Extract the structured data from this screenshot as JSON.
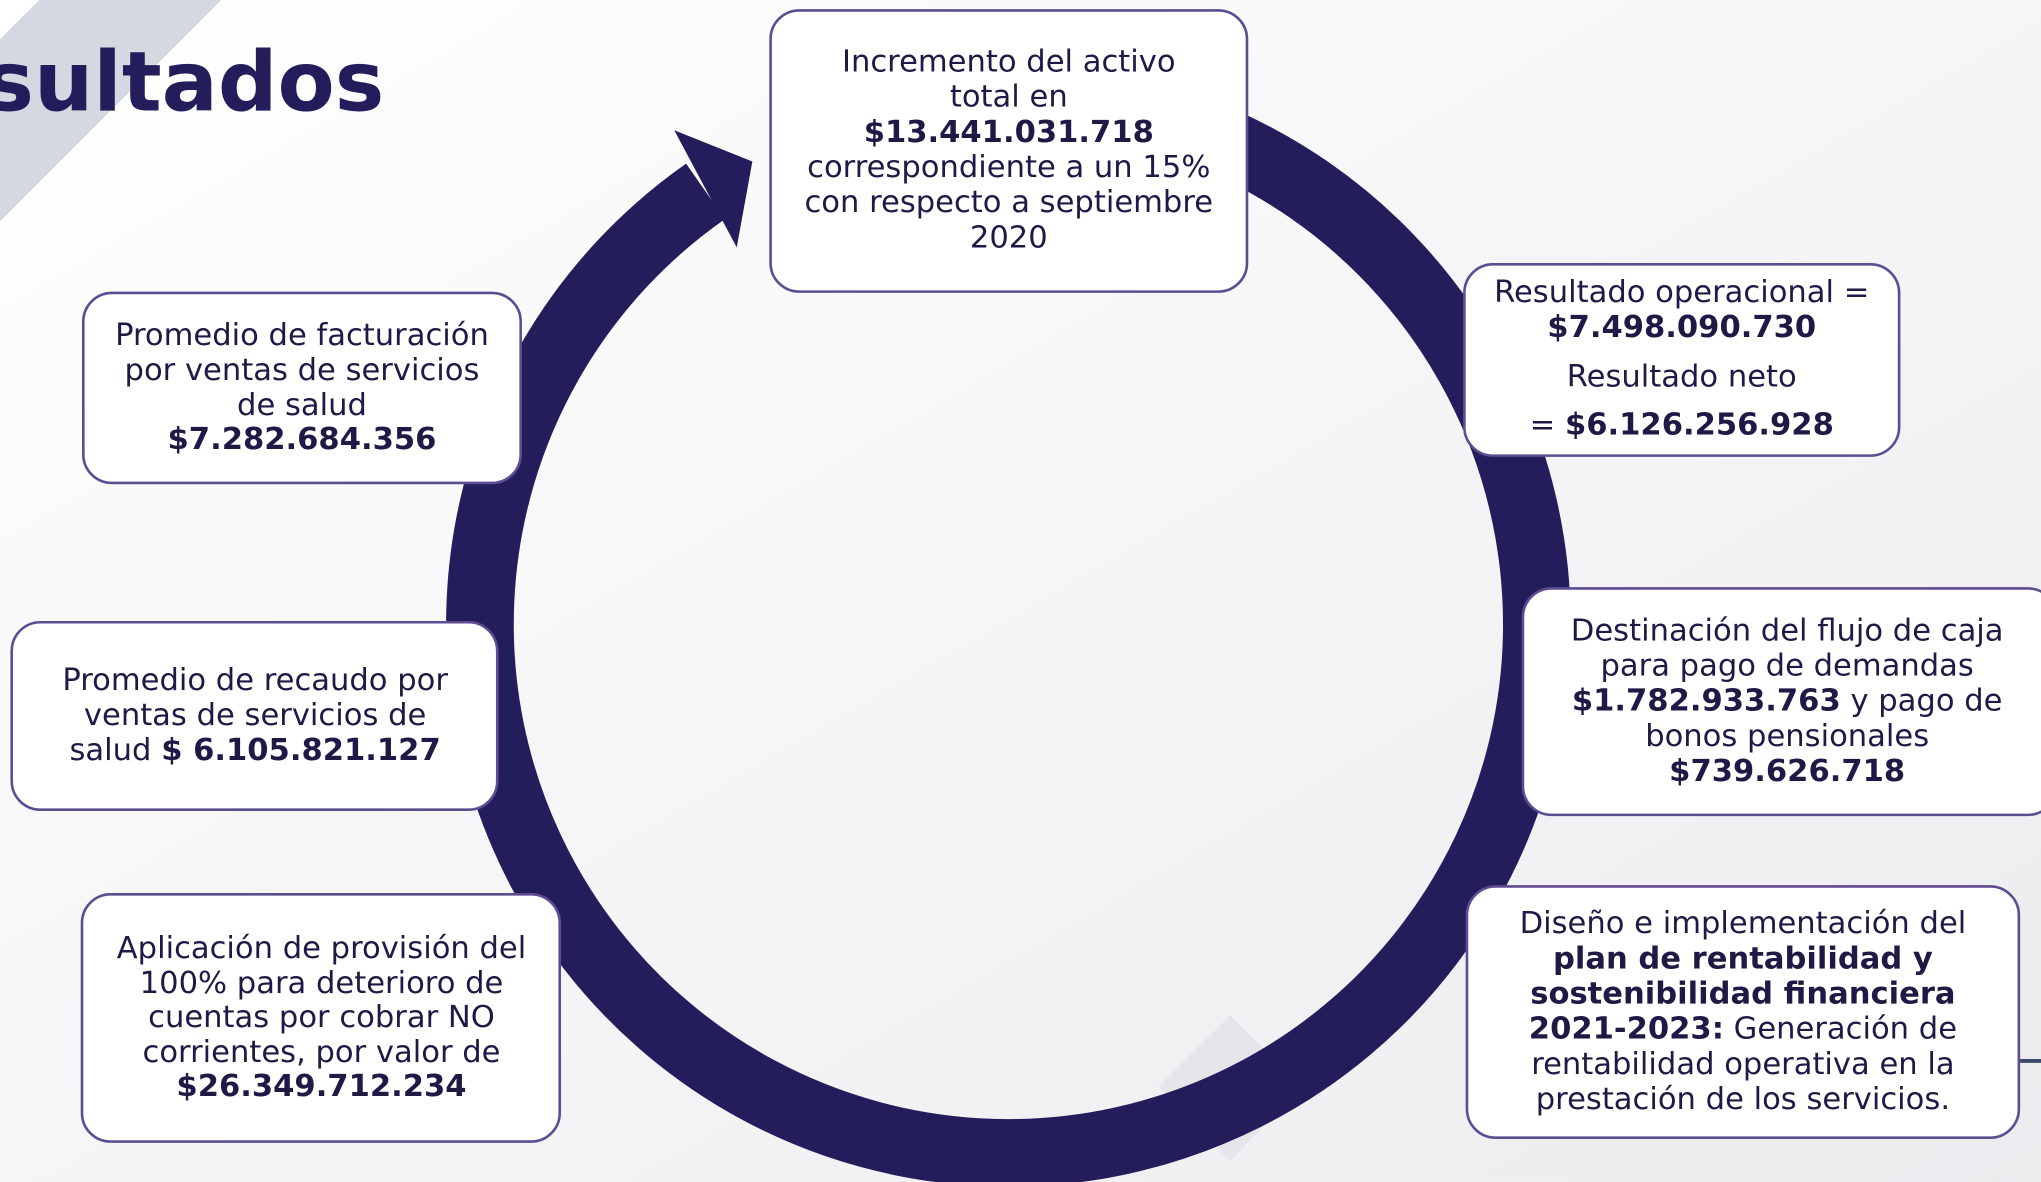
{
  "title": "sultados",
  "boxes": [
    {
      "lines": [
        [
          {
            "text": "Incremento del activo"
          }
        ],
        [
          {
            "text": "total en"
          }
        ],
        [
          {
            "text": "$13.441.031.718",
            "bold": true
          }
        ],
        [
          {
            "text": "correspondiente a un 15%"
          }
        ],
        [
          {
            "text": "con respecto a septiembre"
          }
        ],
        [
          {
            "text": "2020"
          }
        ]
      ]
    },
    {
      "lines": [
        [
          {
            "text": "Resultado operacional ="
          }
        ],
        [
          {
            "text": "$7.498.090.730",
            "bold": true
          }
        ],
        [
          {
            "text": "Resultado neto"
          }
        ],
        [
          {
            "text": "= "
          },
          {
            "text": "$6.126.256.928",
            "bold": true
          }
        ]
      ]
    },
    {
      "lines": [
        [
          {
            "text": "Destinación del flujo de caja"
          }
        ],
        [
          {
            "text": "para pago de demandas"
          }
        ],
        [
          {
            "text": "$1.782.933.763",
            "bold": true
          },
          {
            "text": " y pago de"
          }
        ],
        [
          {
            "text": "bonos pensionales"
          }
        ],
        [
          {
            "text": "$739.626.718",
            "bold": true
          }
        ]
      ]
    },
    {
      "lines": [
        [
          {
            "text": "Diseño e implementación del"
          }
        ],
        [
          {
            "text": "plan de rentabilidad y",
            "bold": true
          }
        ],
        [
          {
            "text": "sostenibilidad financiera",
            "bold": true
          }
        ],
        [
          {
            "text": "2021-2023:",
            "bold": true
          },
          {
            "text": " Generación de"
          }
        ],
        [
          {
            "text": "rentabilidad operativa en la"
          }
        ],
        [
          {
            "text": "prestación de los servicios."
          }
        ]
      ]
    },
    {
      "lines": [
        [
          {
            "text": "Promedio de facturación"
          }
        ],
        [
          {
            "text": "por ventas de servicios"
          }
        ],
        [
          {
            "text": "de salud"
          }
        ],
        [
          {
            "text": "$7.282.684.356",
            "bold": true
          }
        ]
      ]
    },
    {
      "lines": [
        [
          {
            "text": "Promedio de recaudo por"
          }
        ],
        [
          {
            "text": "ventas de servicios de"
          }
        ],
        [
          {
            "text": "salud "
          },
          {
            "text": "$ 6.105.821.127",
            "bold": true
          }
        ]
      ]
    },
    {
      "lines": [
        [
          {
            "text": "Aplicación de provisión del"
          }
        ],
        [
          {
            "text": "100% para deterioro de"
          }
        ],
        [
          {
            "text": "cuentas por cobrar NO"
          }
        ],
        [
          {
            "text": "corrientes, por valor de"
          }
        ],
        [
          {
            "text": "$26.349.712.234",
            "bold": true
          }
        ]
      ]
    }
  ]
}
